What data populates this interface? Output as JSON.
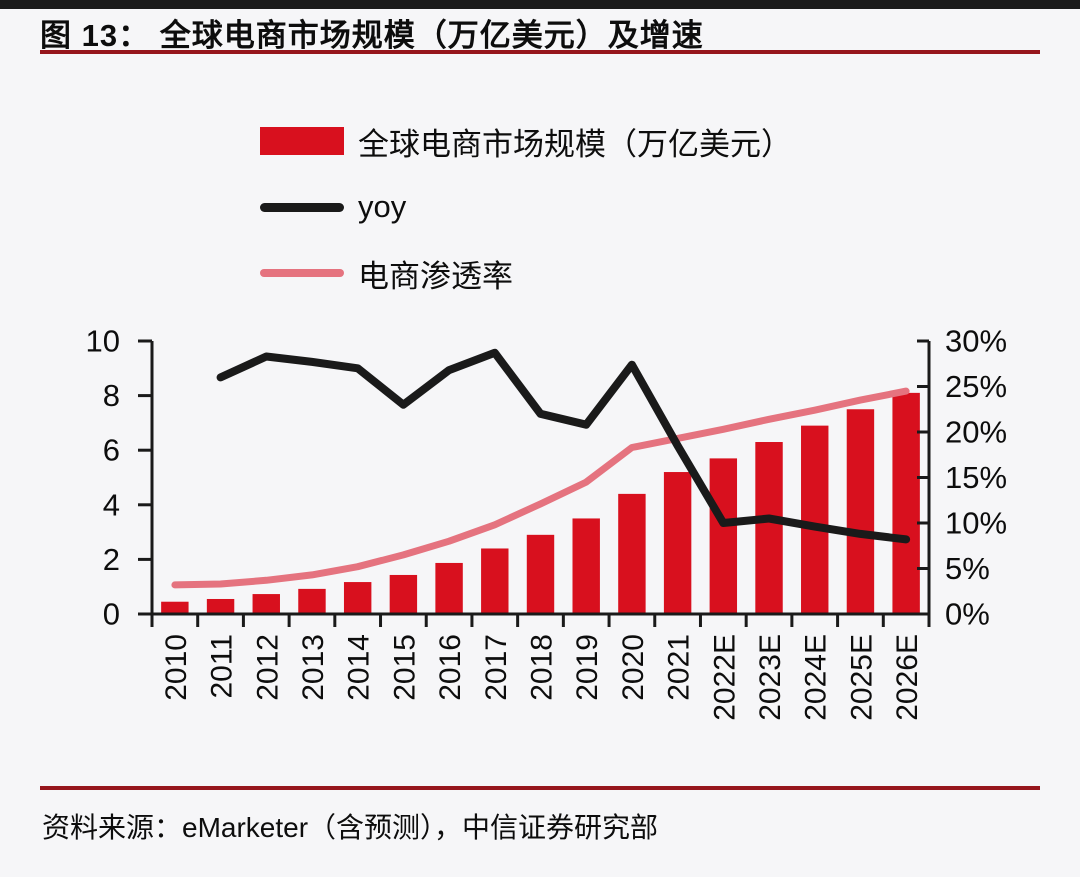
{
  "page": {
    "title": "图 13： 全球电商市场规模（万亿美元）及增速",
    "source": "资料来源：eMarketer（含预测），中信证券研究部"
  },
  "colors": {
    "bar_red": "#d8101e",
    "yoy_black": "#1a1a1a",
    "penetration_pink": "#e5737f",
    "rule_dark_red": "#96161c",
    "top_bar_black": "#1b1b1b",
    "axis_black": "#1a1a1a",
    "background": "#f6f6f8"
  },
  "legend": [
    {
      "label": "全球电商市场规模（万亿美元）",
      "swatch": "bar",
      "color": "#d8101e"
    },
    {
      "label": "yoy",
      "swatch": "line",
      "color": "#1a1a1a"
    },
    {
      "label": "电商渗透率",
      "swatch": "line",
      "color": "#e5737f"
    }
  ],
  "chart_data": {
    "type": "bar",
    "title": "全球电商市场规模（万亿美元）及增速",
    "categories": [
      "2010",
      "2011",
      "2012",
      "2013",
      "2014",
      "2015",
      "2016",
      "2017",
      "2018",
      "2019",
      "2020",
      "2021",
      "2022E",
      "2023E",
      "2024E",
      "2025E",
      "2026E"
    ],
    "series": [
      {
        "name": "全球电商市场规模（万亿美元）",
        "type": "bar",
        "axis": "left",
        "color": "#d8101e",
        "values": [
          0.45,
          0.55,
          0.73,
          0.92,
          1.17,
          1.43,
          1.87,
          2.4,
          2.9,
          3.5,
          4.4,
          5.2,
          5.7,
          6.3,
          6.9,
          7.5,
          8.1
        ]
      },
      {
        "name": "yoy",
        "type": "line",
        "axis": "right",
        "color": "#1a1a1a",
        "values": [
          null,
          26.0,
          28.3,
          27.7,
          27.0,
          23.0,
          26.8,
          28.7,
          22.0,
          20.8,
          27.4,
          18.5,
          10.0,
          10.5,
          9.6,
          8.8,
          8.2
        ]
      },
      {
        "name": "电商渗透率",
        "type": "line",
        "axis": "right",
        "color": "#e5737f",
        "values": [
          3.2,
          3.3,
          3.7,
          4.3,
          5.2,
          6.5,
          8.0,
          9.8,
          12.1,
          14.5,
          18.3,
          19.3,
          20.3,
          21.4,
          22.4,
          23.5,
          24.5
        ]
      }
    ],
    "left_axis": {
      "min": 0,
      "max": 10,
      "ticks": [
        0,
        2,
        4,
        6,
        8,
        10
      ],
      "suffix": ""
    },
    "right_axis": {
      "min": 0,
      "max": 30,
      "ticks": [
        0,
        5,
        10,
        15,
        20,
        25,
        30
      ],
      "suffix": "%"
    },
    "grid": false,
    "legend_position": "top-left-stacked"
  }
}
